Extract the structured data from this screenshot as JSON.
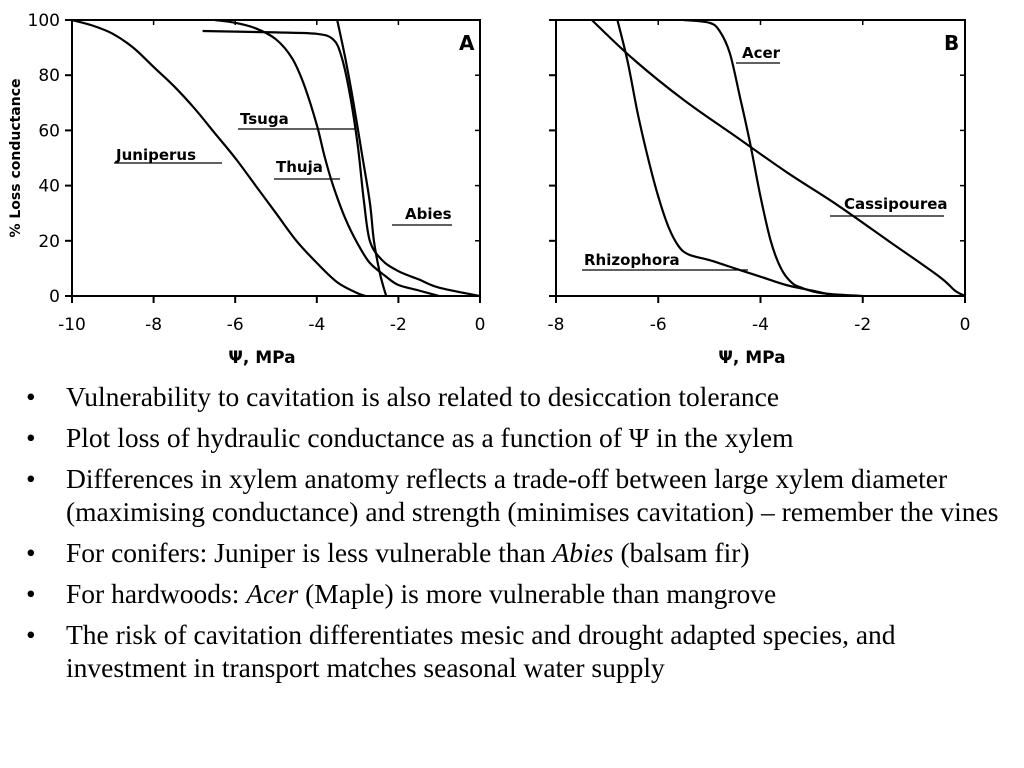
{
  "chart_data": [
    {
      "type": "line",
      "panel_label": "A",
      "ylabel": "% Loss conductance",
      "xlabel": "Ψ, MPa",
      "xlim": [
        -10,
        0
      ],
      "ylim": [
        0,
        100
      ],
      "x_ticks": [
        "-10",
        "-8",
        "-6",
        "-4",
        "-2",
        "0"
      ],
      "y_ticks": [
        "0",
        "20",
        "40",
        "60",
        "80",
        "100"
      ],
      "series": [
        {
          "name": "Juniperus",
          "points": [
            [
              -10,
              100
            ],
            [
              -9.5,
              98
            ],
            [
              -9,
              95
            ],
            [
              -8.5,
              90
            ],
            [
              -8,
              83
            ],
            [
              -7.5,
              76
            ],
            [
              -7,
              68
            ],
            [
              -6.5,
              59
            ],
            [
              -6,
              50
            ],
            [
              -5.5,
              40
            ],
            [
              -5,
              30
            ],
            [
              -4.5,
              20
            ],
            [
              -4,
              12
            ],
            [
              -3.5,
              5
            ],
            [
              -3,
              1
            ],
            [
              -2.8,
              0
            ]
          ]
        },
        {
          "name": "Tsuga",
          "points": [
            [
              -6.8,
              96
            ],
            [
              -5,
              95.5
            ],
            [
              -4,
              95
            ],
            [
              -3.6,
              93
            ],
            [
              -3.4,
              87
            ],
            [
              -3.2,
              74
            ],
            [
              -3,
              55
            ],
            [
              -2.85,
              35
            ],
            [
              -2.7,
              20
            ],
            [
              -2.4,
              13
            ],
            [
              -2,
              9
            ],
            [
              -1.5,
              6
            ],
            [
              -1,
              3
            ],
            [
              0,
              0
            ]
          ]
        },
        {
          "name": "Thuja",
          "points": [
            [
              -6.5,
              100
            ],
            [
              -6,
              99
            ],
            [
              -5.5,
              97
            ],
            [
              -5,
              93
            ],
            [
              -4.6,
              86
            ],
            [
              -4.3,
              76
            ],
            [
              -4,
              62
            ],
            [
              -3.8,
              50
            ],
            [
              -3.6,
              40
            ],
            [
              -3.3,
              28
            ],
            [
              -3,
              19
            ],
            [
              -2.7,
              12
            ],
            [
              -2.3,
              7
            ],
            [
              -2,
              4
            ],
            [
              -1.5,
              2
            ],
            [
              -1,
              0
            ]
          ]
        },
        {
          "name": "Abies",
          "points": [
            [
              -3.5,
              100
            ],
            [
              -3.3,
              86
            ],
            [
              -3.1,
              70
            ],
            [
              -2.9,
              52
            ],
            [
              -2.7,
              34
            ],
            [
              -2.6,
              20
            ],
            [
              -2.45,
              8
            ],
            [
              -2.3,
              0
            ]
          ]
        }
      ]
    },
    {
      "type": "line",
      "panel_label": "B",
      "xlabel": "Ψ, MPa",
      "xlim": [
        -8,
        0
      ],
      "ylim": [
        0,
        100
      ],
      "x_ticks": [
        "-8",
        "-6",
        "-4",
        "-2",
        "0"
      ],
      "series": [
        {
          "name": "Acer",
          "points": [
            [
              -5.5,
              100
            ],
            [
              -5,
              99
            ],
            [
              -4.8,
              96
            ],
            [
              -4.6,
              88
            ],
            [
              -4.4,
              72
            ],
            [
              -4.2,
              55
            ],
            [
              -4,
              36
            ],
            [
              -3.8,
              20
            ],
            [
              -3.6,
              10
            ],
            [
              -3.4,
              5
            ],
            [
              -3.2,
              3
            ],
            [
              -2.8,
              1
            ],
            [
              -2,
              0
            ]
          ]
        },
        {
          "name": "Cassipourea",
          "points": [
            [
              -7.3,
              100
            ],
            [
              -6.5,
              86
            ],
            [
              -5.5,
              71
            ],
            [
              -4.5,
              58
            ],
            [
              -3.5,
              45
            ],
            [
              -2.5,
              33
            ],
            [
              -1.5,
              20
            ],
            [
              -0.5,
              7
            ],
            [
              -0.2,
              2
            ],
            [
              0,
              0
            ]
          ]
        },
        {
          "name": "Rhizophora",
          "points": [
            [
              -6.8,
              100
            ],
            [
              -6.6,
              85
            ],
            [
              -6.4,
              66
            ],
            [
              -6.2,
              50
            ],
            [
              -6,
              36
            ],
            [
              -5.8,
              25
            ],
            [
              -5.6,
              18
            ],
            [
              -5.4,
              15
            ],
            [
              -5,
              13
            ],
            [
              -4.5,
              10
            ],
            [
              -4,
              7
            ],
            [
              -3.5,
              4
            ],
            [
              -3,
              2
            ],
            [
              -2.5,
              0
            ]
          ]
        }
      ]
    }
  ],
  "bullets": [
    {
      "parts": [
        {
          "t": "Vulnerability to cavitation is also related to desiccation tolerance"
        }
      ]
    },
    {
      "parts": [
        {
          "t": "Plot loss of hydraulic conductance as a function of Ψ in the xylem"
        }
      ]
    },
    {
      "parts": [
        {
          "t": "Differences in xylem anatomy reflects a trade-off between large xylem diameter (maximising conductance) and strength (minimises cavitation) – remember the vines"
        }
      ]
    },
    {
      "parts": [
        {
          "t": "For conifers: Juniper is less vulnerable than "
        },
        {
          "t": "Abies",
          "i": true
        },
        {
          "t": " (balsam fir)"
        }
      ]
    },
    {
      "parts": [
        {
          "t": "For hardwoods: "
        },
        {
          "t": "Acer",
          "i": true
        },
        {
          "t": " (Maple) is more vulnerable than mangrove"
        }
      ]
    },
    {
      "parts": [
        {
          "t": "The risk of cavitation differentiates mesic and drought adapted species, and investment in transport matches seasonal water supply"
        }
      ]
    }
  ]
}
